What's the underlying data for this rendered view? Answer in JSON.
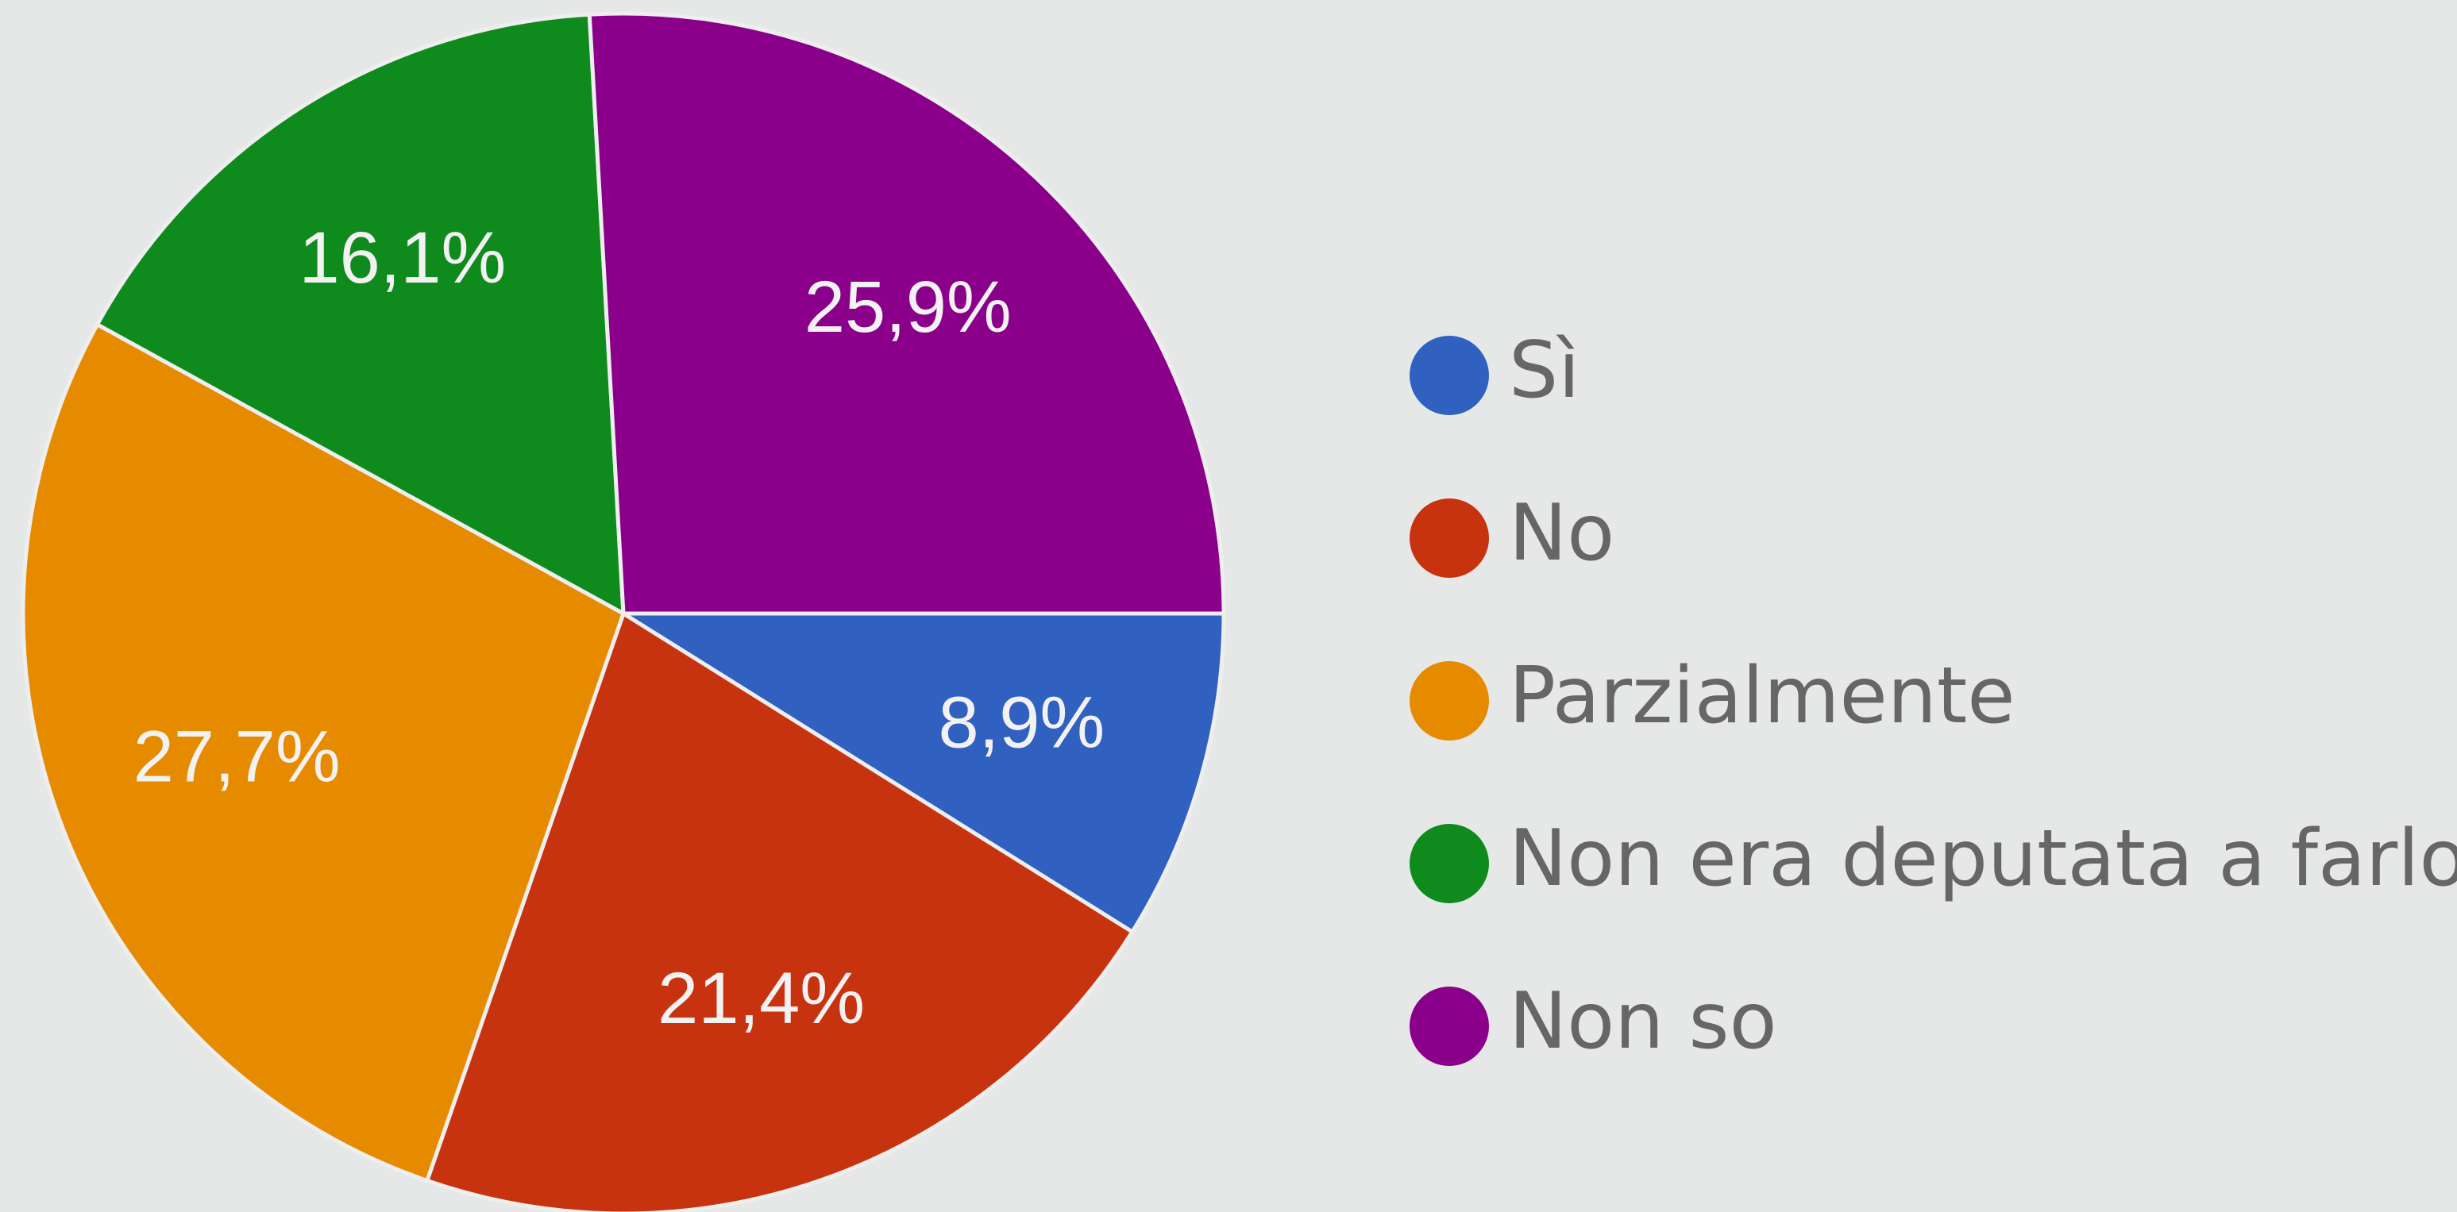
{
  "chart_data": {
    "type": "pie",
    "categories": [
      "Sì",
      "No",
      "Parzialmente",
      "Non era deputata a farlo",
      "Non so"
    ],
    "values": [
      8.9,
      21.4,
      27.7,
      16.1,
      25.9
    ],
    "value_labels": [
      "8,9%",
      "21,4%",
      "27,7%",
      "16,1%",
      "25,9%"
    ],
    "colors": [
      "#3060c0",
      "#c8330f",
      "#e68a00",
      "#0f8a1d",
      "#8a008a"
    ],
    "legend": "right"
  }
}
